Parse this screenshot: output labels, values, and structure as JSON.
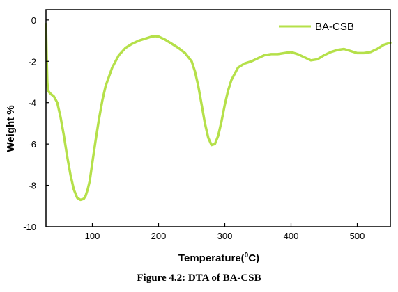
{
  "chart_data": {
    "type": "line",
    "title": "",
    "xlabel": "Temperature(",
    "xlabel_sup": "0",
    "xlabel_suffix": "C)",
    "ylabel": "Weight %",
    "xlim": [
      30,
      550
    ],
    "ylim": [
      -10,
      0.5
    ],
    "xticks": [
      100,
      200,
      300,
      400,
      500
    ],
    "yticks": [
      0,
      -2,
      -4,
      -6,
      -8,
      -10
    ],
    "legend_position": "top-right",
    "series": [
      {
        "name": "BA-CSB",
        "color": "#b5e04a",
        "x": [
          30,
          31,
          32,
          33,
          35,
          38,
          42,
          47,
          52,
          57,
          62,
          67,
          72,
          77,
          82,
          87,
          90,
          93,
          96,
          100,
          105,
          110,
          115,
          120,
          130,
          140,
          150,
          160,
          170,
          180,
          190,
          195,
          200,
          210,
          220,
          230,
          240,
          250,
          255,
          260,
          265,
          270,
          275,
          280,
          285,
          290,
          295,
          300,
          305,
          310,
          320,
          330,
          340,
          350,
          360,
          370,
          380,
          390,
          400,
          410,
          420,
          430,
          440,
          450,
          460,
          470,
          480,
          490,
          500,
          510,
          520,
          530,
          540,
          550
        ],
        "y": [
          -0.2,
          -1.8,
          -3.0,
          -3.4,
          -3.5,
          -3.6,
          -3.7,
          -4.0,
          -4.7,
          -5.6,
          -6.6,
          -7.5,
          -8.2,
          -8.6,
          -8.7,
          -8.65,
          -8.5,
          -8.2,
          -7.8,
          -6.9,
          -5.8,
          -4.8,
          -3.9,
          -3.2,
          -2.3,
          -1.7,
          -1.35,
          -1.15,
          -1.0,
          -0.9,
          -0.8,
          -0.78,
          -0.8,
          -0.95,
          -1.15,
          -1.35,
          -1.6,
          -2.0,
          -2.5,
          -3.2,
          -4.1,
          -5.0,
          -5.7,
          -6.05,
          -6.0,
          -5.6,
          -4.9,
          -4.1,
          -3.4,
          -2.9,
          -2.3,
          -2.1,
          -2.0,
          -1.85,
          -1.7,
          -1.65,
          -1.65,
          -1.6,
          -1.55,
          -1.65,
          -1.8,
          -1.95,
          -1.9,
          -1.7,
          -1.55,
          -1.45,
          -1.4,
          -1.5,
          -1.6,
          -1.6,
          -1.55,
          -1.4,
          -1.2,
          -1.1
        ]
      }
    ]
  },
  "caption": "Figure 4.2: DTA of BA-CSB"
}
